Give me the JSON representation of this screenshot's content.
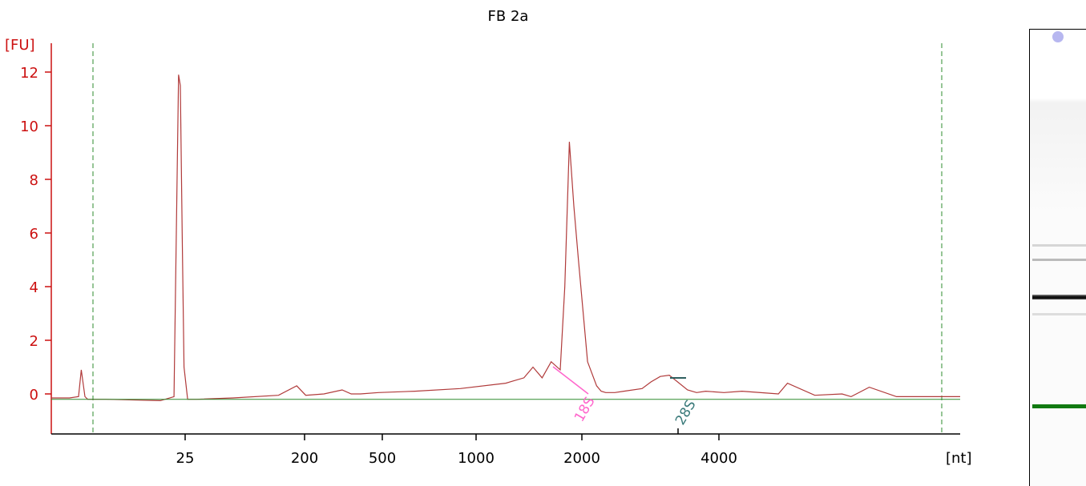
{
  "chart_data": {
    "type": "line",
    "title": "FB 2a",
    "ylabel": "[FU]",
    "xlabel": "[nt]",
    "ylim": [
      -1.5,
      13
    ],
    "yticks": [
      0,
      2,
      4,
      6,
      8,
      10,
      12
    ],
    "xticks": [
      "25",
      "200",
      "500",
      "1000",
      "2000",
      "4000"
    ],
    "peaks": [
      {
        "label": "18S",
        "color": "#ff66cc"
      },
      {
        "label": "28S",
        "color": "#3a7a7a"
      }
    ],
    "series": [
      {
        "color": "#b03a3a",
        "x": [
          0,
          0.02,
          0.03,
          0.033,
          0.037,
          0.04,
          0.06,
          0.12,
          0.135,
          0.14,
          0.142,
          0.144,
          0.146,
          0.15,
          0.16,
          0.2,
          0.25,
          0.27,
          0.28,
          0.3,
          0.32,
          0.33,
          0.34,
          0.36,
          0.4,
          0.45,
          0.5,
          0.52,
          0.53,
          0.54,
          0.55,
          0.56,
          0.565,
          0.57,
          0.575,
          0.58,
          0.59,
          0.6,
          0.605,
          0.61,
          0.62,
          0.63,
          0.65,
          0.66,
          0.67,
          0.68,
          0.7,
          0.71,
          0.72,
          0.74,
          0.76,
          0.8,
          0.81,
          0.84,
          0.87,
          0.88,
          0.9,
          0.93,
          1.0
        ],
        "y": [
          -0.15,
          -0.15,
          -0.1,
          0.9,
          -0.1,
          -0.2,
          -0.2,
          -0.25,
          -0.1,
          11.9,
          11.5,
          6.0,
          1.0,
          -0.2,
          -0.2,
          -0.15,
          -0.05,
          0.3,
          -0.05,
          0.0,
          0.15,
          0.0,
          0.0,
          0.05,
          0.1,
          0.2,
          0.4,
          0.6,
          1.0,
          0.6,
          1.2,
          0.9,
          4.0,
          9.4,
          7.0,
          5.0,
          1.2,
          0.3,
          0.1,
          0.05,
          0.05,
          0.1,
          0.2,
          0.45,
          0.65,
          0.7,
          0.15,
          0.05,
          0.1,
          0.05,
          0.1,
          0.0,
          0.4,
          -0.05,
          0.0,
          -0.1,
          0.25,
          -0.1,
          -0.1
        ]
      },
      {
        "color": "#2e8b2e",
        "x": [
          0,
          1.0
        ],
        "y": [
          -0.2,
          -0.2
        ]
      }
    ],
    "legend": "none",
    "grid": false
  },
  "gel": {
    "bands": [
      {
        "pos": 0.47,
        "color": "#d6d6d6"
      },
      {
        "pos": 0.5,
        "color": "#bbbbbb"
      },
      {
        "pos": 0.5795,
        "color": "#000000"
      },
      {
        "pos": 0.62,
        "color": "#dddddd"
      },
      {
        "pos": 0.82,
        "color": "#117a11"
      }
    ],
    "marker_color": "#b7b7f0"
  }
}
